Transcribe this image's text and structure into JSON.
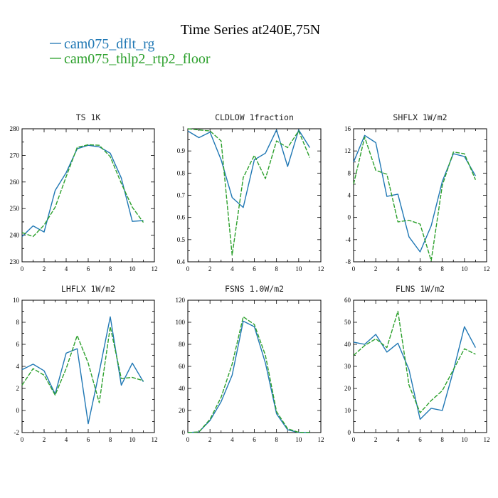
{
  "figure": {
    "title": "Time Series at240E,75N",
    "legend": [
      {
        "name": "cam075_dflt_rg",
        "color": "#1f77b4",
        "dash": "solid"
      },
      {
        "name": "cam075_thlp2_rtp2_floor",
        "color": "#2ca02c",
        "dash": "dashed"
      }
    ]
  },
  "chart_data": [
    {
      "type": "line",
      "title": "TS  1K",
      "xlim": [
        0,
        12
      ],
      "ylim": [
        230,
        280
      ],
      "xticks": [
        0,
        2,
        4,
        6,
        8,
        10,
        12
      ],
      "yticks": [
        230,
        240,
        250,
        260,
        270,
        280
      ],
      "x": [
        0,
        1,
        2,
        3,
        4,
        5,
        6,
        7,
        8,
        9,
        10,
        11
      ],
      "series": [
        {
          "name": "cam075_dflt_rg",
          "values": [
            239.5,
            243.5,
            241.2,
            256.8,
            263.5,
            272.5,
            273.8,
            273.2,
            270.8,
            261.5,
            245.2,
            245.5
          ]
        },
        {
          "name": "cam075_thlp2_rtp2_floor",
          "values": [
            241.0,
            239.5,
            243.8,
            250.5,
            262.0,
            273.0,
            274.0,
            273.8,
            269.5,
            259.5,
            250.5,
            244.8
          ]
        }
      ]
    },
    {
      "type": "line",
      "title": "CLDLOW  1fraction",
      "xlim": [
        0,
        12
      ],
      "ylim": [
        0.4,
        1.0
      ],
      "xticks": [
        0,
        2,
        4,
        6,
        8,
        10,
        12
      ],
      "yticks": [
        "0.4",
        "0.5",
        "0.6",
        "0.7",
        "0.8",
        "0.9",
        "1"
      ],
      "x": [
        0,
        1,
        2,
        3,
        4,
        5,
        6,
        7,
        8,
        9,
        10,
        11
      ],
      "series": [
        {
          "name": "cam075_dflt_rg",
          "values": [
            0.99,
            0.96,
            0.985,
            0.86,
            0.69,
            0.645,
            0.86,
            0.89,
            0.995,
            0.83,
            0.995,
            0.915
          ]
        },
        {
          "name": "cam075_thlp2_rtp2_floor",
          "values": [
            1.0,
            0.995,
            0.99,
            0.945,
            0.43,
            0.78,
            0.88,
            0.775,
            0.945,
            0.915,
            0.99,
            0.87
          ]
        }
      ]
    },
    {
      "type": "line",
      "title": "SHFLX  1W/m2",
      "xlim": [
        0,
        12
      ],
      "ylim": [
        -8,
        16
      ],
      "xticks": [
        0,
        2,
        4,
        6,
        8,
        10,
        12
      ],
      "yticks": [
        -8,
        -4,
        0,
        4,
        8,
        12,
        16
      ],
      "x": [
        0,
        1,
        2,
        3,
        4,
        5,
        6,
        7,
        8,
        9,
        10,
        11
      ],
      "series": [
        {
          "name": "cam075_dflt_rg",
          "values": [
            10.0,
            14.8,
            13.5,
            3.8,
            4.2,
            -3.5,
            -6.2,
            -1.5,
            6.5,
            11.5,
            11.0,
            7.5
          ]
        },
        {
          "name": "cam075_thlp2_rtp2_floor",
          "values": [
            6.0,
            14.5,
            8.5,
            7.8,
            -0.8,
            -0.5,
            -1.2,
            -7.8,
            5.8,
            11.8,
            11.5,
            6.8
          ]
        }
      ]
    },
    {
      "type": "line",
      "title": "LHFLX  1W/m2",
      "xlim": [
        0,
        12
      ],
      "ylim": [
        -2,
        10
      ],
      "xticks": [
        0,
        2,
        4,
        6,
        8,
        10,
        12
      ],
      "yticks": [
        -2,
        0,
        2,
        4,
        6,
        8,
        10
      ],
      "x": [
        0,
        1,
        2,
        3,
        4,
        5,
        6,
        7,
        8,
        9,
        10,
        11
      ],
      "series": [
        {
          "name": "cam075_dflt_rg",
          "values": [
            3.7,
            4.2,
            3.6,
            1.5,
            5.2,
            5.6,
            -1.2,
            3.5,
            8.5,
            2.3,
            4.3,
            2.6
          ]
        },
        {
          "name": "cam075_thlp2_rtp2_floor",
          "values": [
            2.3,
            3.8,
            3.2,
            1.4,
            3.8,
            6.8,
            4.3,
            0.7,
            7.6,
            2.9,
            3.0,
            2.7
          ]
        }
      ]
    },
    {
      "type": "line",
      "title": "FSNS  1.0W/m2",
      "xlim": [
        0,
        12
      ],
      "ylim": [
        0,
        120
      ],
      "xticks": [
        0,
        2,
        4,
        6,
        8,
        10,
        12
      ],
      "yticks": [
        0,
        20,
        40,
        60,
        80,
        100,
        120
      ],
      "x": [
        0,
        1,
        2,
        3,
        4,
        5,
        6,
        7,
        8,
        9,
        10,
        11
      ],
      "series": [
        {
          "name": "cam075_dflt_rg",
          "values": [
            0.0,
            0.5,
            11.0,
            28.0,
            52.0,
            101.0,
            96.0,
            63.0,
            17.0,
            2.5,
            0.0,
            0.0
          ]
        },
        {
          "name": "cam075_thlp2_rtp2_floor",
          "values": [
            0.0,
            0.5,
            12.0,
            32.0,
            62.0,
            105.0,
            98.0,
            70.0,
            19.0,
            3.5,
            0.2,
            0.0
          ]
        }
      ]
    },
    {
      "type": "line",
      "title": "FLNS  1W/m2",
      "xlim": [
        0,
        12
      ],
      "ylim": [
        0,
        60
      ],
      "xticks": [
        0,
        2,
        4,
        6,
        8,
        10,
        12
      ],
      "yticks": [
        0,
        10,
        20,
        30,
        40,
        50,
        60
      ],
      "x": [
        0,
        1,
        2,
        3,
        4,
        5,
        6,
        7,
        8,
        9,
        10,
        11
      ],
      "series": [
        {
          "name": "cam075_dflt_rg",
          "values": [
            41.0,
            40.0,
            44.5,
            36.5,
            40.5,
            28.5,
            6.0,
            11.0,
            10.0,
            28.0,
            48.0,
            38.5
          ]
        },
        {
          "name": "cam075_thlp2_rtp2_floor",
          "values": [
            35.0,
            39.5,
            42.5,
            38.5,
            55.0,
            21.5,
            9.0,
            14.5,
            19.0,
            28.5,
            38.0,
            35.5
          ]
        }
      ]
    }
  ]
}
